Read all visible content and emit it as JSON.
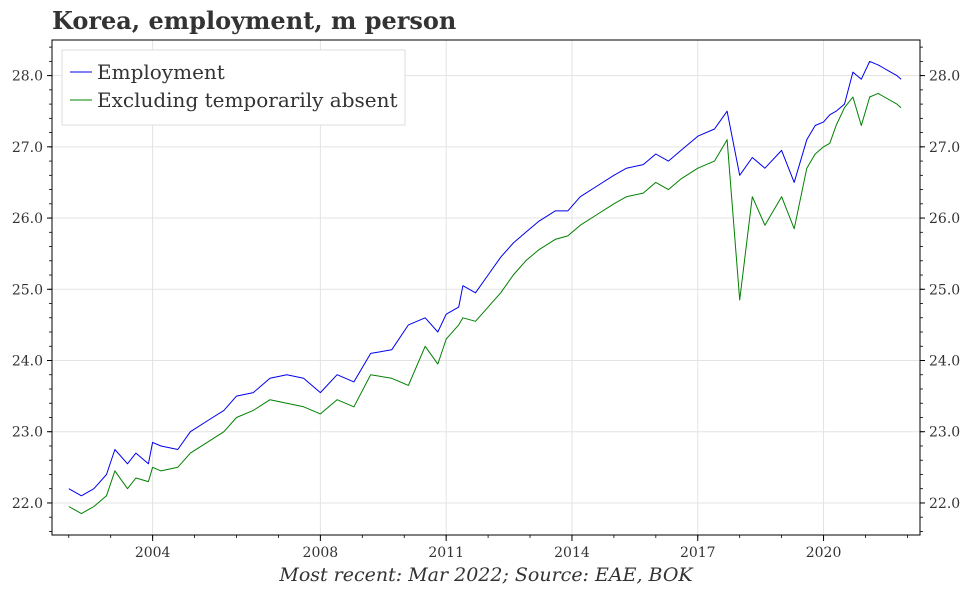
{
  "title": "Korea, employment, m person",
  "source": "Most recent: Mar 2022; Source: EAE, BOK",
  "chart_data": {
    "type": "line",
    "ylim": [
      21.55,
      28.5
    ],
    "yticks": [
      22.0,
      23.0,
      24.0,
      25.0,
      26.0,
      27.0,
      28.0
    ],
    "ytick_labels": [
      "22.0",
      "23.0",
      "24.0",
      "25.0",
      "26.0",
      "27.0",
      "28.0"
    ],
    "xlim": [
      2001.6,
      2022.3
    ],
    "xticks": [
      2004,
      2008,
      2011,
      2014,
      2017,
      2020
    ],
    "xtick_labels": [
      "2004",
      "2008",
      "2011",
      "2014",
      "2017",
      "2020"
    ],
    "grid": true,
    "legend_position": "top-left",
    "series": [
      {
        "name": "Employment",
        "color": "#0000ee",
        "x": [
          2002.0,
          2002.3,
          2002.6,
          2002.9,
          2003.1,
          2003.4,
          2003.6,
          2003.9,
          2004.0,
          2004.2,
          2004.6,
          2004.9,
          2005.3,
          2005.7,
          2006.0,
          2006.4,
          2006.8,
          2007.2,
          2007.6,
          2008.0,
          2008.4,
          2008.8,
          2009.2,
          2009.7,
          2010.1,
          2010.5,
          2010.8,
          2011.0,
          2011.3,
          2011.4,
          2011.7,
          2012.0,
          2012.3,
          2012.6,
          2012.9,
          2013.2,
          2013.6,
          2013.9,
          2014.2,
          2014.6,
          2015.0,
          2015.3,
          2015.7,
          2016.0,
          2016.3,
          2016.6,
          2017.0,
          2017.4,
          2017.7,
          2018.0,
          2018.3,
          2018.6,
          2019.0,
          2019.3,
          2019.6,
          2019.8,
          2020.0,
          2020.15,
          2020.3,
          2020.5,
          2020.7,
          2020.9,
          2021.1,
          2021.3,
          2021.45,
          2021.6,
          2021.75,
          2021.85
        ],
        "values": [
          22.2,
          22.1,
          22.2,
          22.4,
          22.75,
          22.55,
          22.7,
          22.55,
          22.85,
          22.8,
          22.75,
          23.0,
          23.15,
          23.3,
          23.5,
          23.55,
          23.75,
          23.8,
          23.75,
          23.55,
          23.8,
          23.7,
          24.1,
          24.15,
          24.5,
          24.6,
          24.4,
          24.65,
          24.75,
          25.05,
          24.95,
          25.2,
          25.45,
          25.65,
          25.8,
          25.95,
          26.1,
          26.1,
          26.3,
          26.45,
          26.6,
          26.7,
          26.75,
          26.9,
          26.8,
          26.95,
          27.15,
          27.25,
          27.5,
          26.6,
          26.85,
          26.7,
          26.95,
          26.5,
          27.1,
          27.3,
          27.35,
          27.45,
          27.5,
          27.6,
          28.05,
          27.95,
          28.2,
          28.15,
          28.1,
          28.05,
          28.0,
          27.95
        ],
        "note": "x and values listed pairwise; the plotted curve ends Mar 2022"
      },
      {
        "name": "Excluding temporarily absent",
        "color": "#008000",
        "x": [
          2002.0,
          2002.3,
          2002.6,
          2002.9,
          2003.1,
          2003.4,
          2003.6,
          2003.9,
          2004.0,
          2004.2,
          2004.6,
          2004.9,
          2005.3,
          2005.7,
          2006.0,
          2006.4,
          2006.8,
          2007.2,
          2007.6,
          2008.0,
          2008.4,
          2008.8,
          2009.2,
          2009.7,
          2010.1,
          2010.5,
          2010.8,
          2011.0,
          2011.3,
          2011.4,
          2011.7,
          2012.0,
          2012.3,
          2012.6,
          2012.9,
          2013.2,
          2013.6,
          2013.9,
          2014.2,
          2014.6,
          2015.0,
          2015.3,
          2015.7,
          2016.0,
          2016.3,
          2016.6,
          2017.0,
          2017.4,
          2017.7,
          2018.0,
          2018.3,
          2018.6,
          2019.0,
          2019.3,
          2019.6,
          2019.8,
          2020.0,
          2020.15,
          2020.3,
          2020.5,
          2020.7,
          2020.9,
          2021.1,
          2021.3,
          2021.45,
          2021.6,
          2021.75,
          2021.85
        ],
        "values": [
          21.95,
          21.85,
          21.95,
          22.1,
          22.45,
          22.2,
          22.35,
          22.3,
          22.5,
          22.45,
          22.5,
          22.7,
          22.85,
          23.0,
          23.2,
          23.3,
          23.45,
          23.4,
          23.35,
          23.25,
          23.45,
          23.35,
          23.8,
          23.75,
          23.65,
          24.2,
          23.95,
          24.3,
          24.5,
          24.6,
          24.55,
          24.75,
          24.95,
          25.2,
          25.4,
          25.55,
          25.7,
          25.75,
          25.9,
          26.05,
          26.2,
          26.3,
          26.35,
          26.5,
          26.4,
          26.55,
          26.7,
          26.8,
          27.1,
          24.85,
          26.3,
          25.9,
          26.3,
          25.85,
          26.7,
          26.9,
          27.0,
          27.05,
          27.3,
          27.55,
          27.7,
          27.3,
          27.7,
          27.75,
          27.7,
          27.65,
          27.6,
          27.55
        ],
        "note": "x and values listed pairwise; the plotted curve ends Mar 2022"
      }
    ]
  }
}
